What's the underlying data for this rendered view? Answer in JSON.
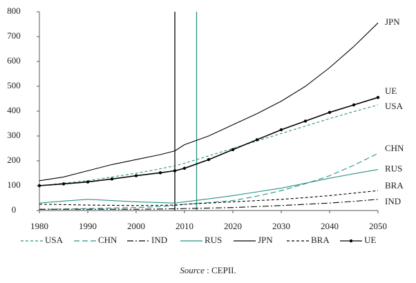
{
  "chart_data": {
    "type": "line",
    "x": [
      1980,
      1985,
      1990,
      1995,
      2000,
      2005,
      2008,
      2010,
      2015,
      2020,
      2025,
      2030,
      2035,
      2040,
      2045,
      2050
    ],
    "xlim": [
      1980,
      2050
    ],
    "xticks": [
      1980,
      1990,
      2000,
      2010,
      2020,
      2030,
      2040,
      2050
    ],
    "ylim": [
      0,
      800
    ],
    "yticks": [
      0,
      100,
      200,
      300,
      400,
      500,
      600,
      700,
      800
    ],
    "vlines": [
      {
        "x": 2008,
        "color": "#000000"
      },
      {
        "x": 2012.5,
        "color": "#2a9085"
      }
    ],
    "series": [
      {
        "name": "USA",
        "color": "#2a9085",
        "style": "dashed",
        "values": [
          100,
          110,
          120,
          135,
          150,
          168,
          180,
          190,
          220,
          250,
          280,
          310,
          340,
          370,
          398,
          425
        ]
      },
      {
        "name": "CHN",
        "color": "#2a9085",
        "style": "longdash",
        "values": [
          5,
          6,
          8,
          10,
          12,
          16,
          20,
          25,
          32,
          40,
          58,
          80,
          108,
          140,
          182,
          230
        ]
      },
      {
        "name": "IND",
        "color": "#000000",
        "style": "dashdot",
        "values": [
          5,
          5,
          5,
          5,
          5,
          6,
          7,
          8,
          10,
          12,
          16,
          20,
          25,
          30,
          37,
          45
        ]
      },
      {
        "name": "RUS",
        "color": "#2a9085",
        "style": "solid",
        "values": [
          30,
          38,
          45,
          40,
          35,
          32,
          30,
          35,
          47,
          60,
          75,
          90,
          110,
          130,
          148,
          165
        ]
      },
      {
        "name": "JPN",
        "color": "#000000",
        "style": "solid",
        "values": [
          120,
          135,
          160,
          185,
          205,
          225,
          240,
          265,
          300,
          345,
          390,
          440,
          500,
          575,
          660,
          755
        ]
      },
      {
        "name": "BRA",
        "color": "#000000",
        "style": "dashed",
        "values": [
          25,
          24,
          22,
          21,
          20,
          21,
          22,
          25,
          30,
          35,
          40,
          45,
          52,
          60,
          70,
          80
        ]
      },
      {
        "name": "UE",
        "color": "#000000",
        "style": "markers",
        "values": [
          100,
          107,
          115,
          127,
          140,
          152,
          160,
          170,
          205,
          245,
          285,
          325,
          360,
          395,
          425,
          455
        ]
      }
    ],
    "source_label": "Source",
    "source": " : CEPII."
  }
}
